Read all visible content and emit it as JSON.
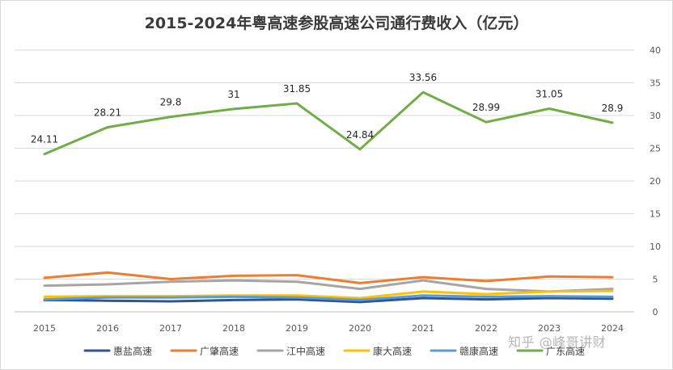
{
  "chart_data": {
    "type": "line",
    "title": "2015-2024年粤高速参股高速公司通行费收入（亿元）",
    "x": [
      "2015",
      "2016",
      "2017",
      "2018",
      "2019",
      "2020",
      "2021",
      "2022",
      "2023",
      "2024"
    ],
    "ylim": [
      0,
      40
    ],
    "yticks": [
      0,
      5,
      10,
      15,
      20,
      25,
      30,
      35,
      40
    ],
    "y_axis_side": "right",
    "grid": true,
    "legend_position": "bottom",
    "series": [
      {
        "name": "惠盐高速",
        "color": "#2f5597",
        "values": [
          1.8,
          1.7,
          1.6,
          1.8,
          1.9,
          1.5,
          2.1,
          1.9,
          2.1,
          2.0
        ]
      },
      {
        "name": "广肇高速",
        "color": "#ed7d31",
        "values": [
          5.2,
          6.0,
          5.0,
          5.5,
          5.6,
          4.4,
          5.3,
          4.7,
          5.4,
          5.3
        ]
      },
      {
        "name": "江中高速",
        "color": "#a5a5a5",
        "values": [
          4.0,
          4.2,
          4.6,
          4.8,
          4.6,
          3.5,
          4.8,
          3.5,
          3.1,
          3.5
        ]
      },
      {
        "name": "康大高速",
        "color": "#ffc000",
        "values": [
          2.3,
          2.4,
          2.4,
          2.5,
          2.5,
          2.1,
          3.1,
          2.7,
          3.1,
          3.2
        ]
      },
      {
        "name": "赣康高速",
        "color": "#5b9bd5",
        "values": [
          1.9,
          2.2,
          2.2,
          2.3,
          2.2,
          1.8,
          2.5,
          2.3,
          2.4,
          2.3
        ]
      },
      {
        "name": "广东高速",
        "color": "#70ad47",
        "values": [
          24.11,
          28.21,
          29.8,
          31,
          31.85,
          24.84,
          33.56,
          28.99,
          31.05,
          28.9
        ],
        "labels": [
          "24.11",
          "28.21",
          "29.8",
          "31",
          "31.85",
          "24.84",
          "33.56",
          "28.99",
          "31.05",
          "28.9"
        ]
      }
    ]
  },
  "watermark": "知乎 @峰哥讲财"
}
